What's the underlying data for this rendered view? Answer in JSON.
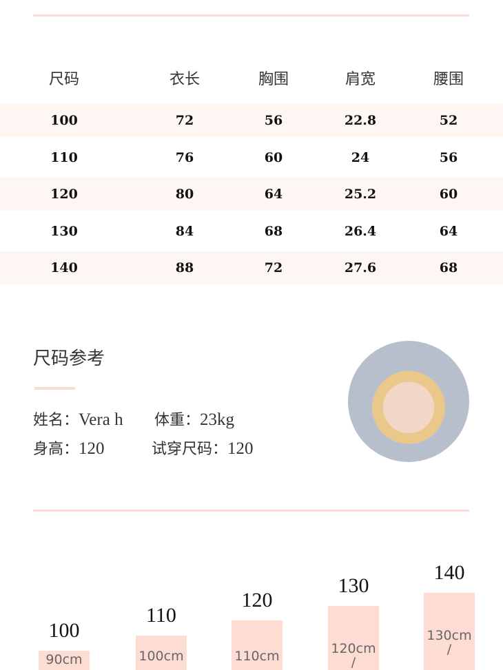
{
  "table": {
    "headers": [
      "尺码",
      "衣长",
      "胸围",
      "肩宽",
      "腰围"
    ],
    "rows": [
      [
        "100",
        "72",
        "56",
        "22.8",
        "52"
      ],
      [
        "110",
        "76",
        "60",
        "24",
        "56"
      ],
      [
        "120",
        "80",
        "64",
        "25.2",
        "60"
      ],
      [
        "130",
        "84",
        "68",
        "26.4",
        "64"
      ],
      [
        "140",
        "88",
        "72",
        "27.6",
        "68"
      ]
    ]
  },
  "reference": {
    "title": "尺码参考",
    "name_label": "姓名：",
    "name": "Vera h",
    "weight_label": "体重：",
    "weight": "23kg",
    "height_label": "身高：",
    "height": "120",
    "trial_label": "试穿尺码：",
    "trial": "120"
  },
  "height_chart": [
    {
      "size": "100",
      "height": "90cm"
    },
    {
      "size": "110",
      "height": "100cm"
    },
    {
      "size": "120",
      "height": "110cm"
    },
    {
      "size": "130",
      "height": "120cm",
      "sep": "/"
    },
    {
      "size": "140",
      "height": "130cm",
      "sep": "/"
    }
  ],
  "colors": {
    "accent": "#fbdcd4",
    "stripe": "#fdf6f3"
  }
}
